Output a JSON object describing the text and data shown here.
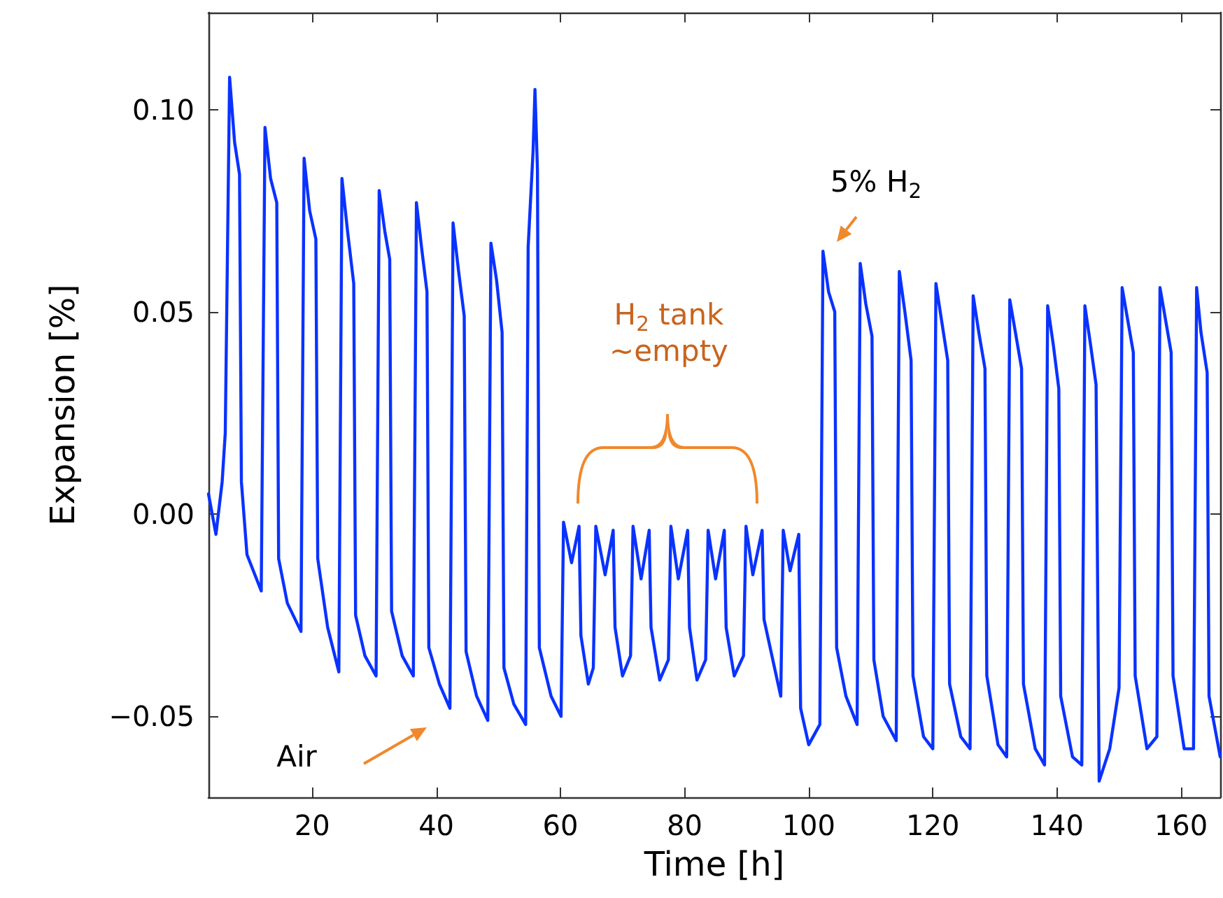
{
  "chart_data": {
    "type": "line",
    "xlabel": "Time [h]",
    "ylabel": "Expansion [%]",
    "xlim": [
      3.3,
      166.3
    ],
    "xticks": [
      20,
      40,
      60,
      80,
      100,
      120,
      140,
      160
    ],
    "ylim": [
      -0.07,
      0.124
    ],
    "yticks": [
      {
        "value": -0.05,
        "label": "−0.05"
      },
      {
        "value": 0,
        "label": "0.00"
      },
      {
        "value": 0.05,
        "label": "0.05"
      },
      {
        "value": 0.1,
        "label": "0.10"
      }
    ],
    "grid": false,
    "marker": "none",
    "line_style": "solid",
    "annotations": [
      "Air",
      "5% H$_{2}$",
      "H$_{2}$ tank\n~empty"
    ],
    "series": [
      {
        "color": "#0a32ff",
        "x": [
          3.3,
          4.5,
          5.5,
          6.0,
          6.7,
          7.5,
          8.3,
          8.6,
          9.5,
          11.8,
          12.4,
          13.3,
          14.3,
          14.6,
          16,
          18.2,
          18.7,
          19.6,
          20.6,
          20.9,
          22.5,
          24.3,
          24.8,
          25.7,
          26.7,
          27.0,
          28.5,
          30.3,
          30.8,
          31.7,
          32.5,
          32.8,
          34.5,
          36.3,
          36.8,
          37.7,
          38.5,
          38.8,
          40.5,
          42.2,
          42.7,
          43.6,
          44.5,
          44.8,
          46.5,
          48.3,
          48.8,
          49.7,
          50.6,
          50.9,
          52.5,
          54.4,
          54.8,
          55.6,
          55.9,
          56.3,
          56.6,
          58.5,
          60.1,
          60.5,
          61.8,
          63.0,
          63.3,
          64.5,
          65.3,
          65.7,
          67.2,
          68.5,
          68.8,
          70,
          71.3,
          71.7,
          73,
          74.3,
          74.6,
          76,
          77.4,
          77.8,
          79,
          80.5,
          80.8,
          82,
          83.4,
          83.8,
          85,
          86.4,
          86.7,
          88,
          89.5,
          89.9,
          91,
          92.5,
          92.8,
          94.5,
          95.5,
          95.9,
          97,
          98.4,
          98.7,
          100,
          101.8,
          102.3,
          103.2,
          104.2,
          104.5,
          106,
          107.8,
          108.3,
          109.2,
          110.2,
          110.5,
          112,
          114.1,
          114.6,
          115.5,
          116.5,
          116.8,
          118.5,
          120,
          120.5,
          121.4,
          122.4,
          122.7,
          124.5,
          126,
          126.5,
          127.4,
          128.4,
          128.7,
          130.5,
          131.9,
          132.4,
          133.3,
          134.3,
          134.6,
          136.5,
          138,
          138.5,
          139.4,
          140.3,
          140.6,
          142.5,
          144,
          144.5,
          145.4,
          146.3,
          146.8,
          148.5,
          150,
          150.5,
          151.4,
          152.3,
          152.6,
          154.5,
          156.1,
          156.6,
          157.5,
          158.4,
          158.7,
          160.5,
          162,
          162.5,
          163.2,
          164.2,
          164.5,
          166.3
        ],
        "values": [
          0.005,
          -0.005,
          0.008,
          0.02,
          0.108,
          0.092,
          0.084,
          0.008,
          -0.01,
          -0.019,
          0.0956,
          0.083,
          0.077,
          -0.011,
          -0.022,
          -0.029,
          0.088,
          0.075,
          0.068,
          -0.011,
          -0.028,
          -0.039,
          0.083,
          0.07,
          0.057,
          -0.025,
          -0.035,
          -0.04,
          0.08,
          0.07,
          0.063,
          -0.024,
          -0.035,
          -0.04,
          0.077,
          0.065,
          0.055,
          -0.033,
          -0.042,
          -0.048,
          0.072,
          0.06,
          0.049,
          -0.034,
          -0.045,
          -0.051,
          0.067,
          0.058,
          0.045,
          -0.038,
          -0.047,
          -0.052,
          0.066,
          0.09,
          0.105,
          0.085,
          -0.033,
          -0.045,
          -0.05,
          -0.002,
          -0.012,
          -0.003,
          -0.03,
          -0.042,
          -0.038,
          -0.003,
          -0.015,
          -0.004,
          -0.028,
          -0.04,
          -0.035,
          -0.003,
          -0.016,
          -0.004,
          -0.028,
          -0.041,
          -0.036,
          -0.003,
          -0.016,
          -0.004,
          -0.028,
          -0.041,
          -0.036,
          -0.004,
          -0.016,
          -0.004,
          -0.028,
          -0.04,
          -0.035,
          -0.003,
          -0.015,
          -0.004,
          -0.026,
          -0.038,
          -0.045,
          -0.004,
          -0.014,
          -0.005,
          -0.048,
          -0.057,
          -0.052,
          0.065,
          0.055,
          0.05,
          -0.033,
          -0.045,
          -0.052,
          0.062,
          0.052,
          0.044,
          -0.036,
          -0.05,
          -0.056,
          0.06,
          0.05,
          0.038,
          -0.04,
          -0.055,
          -0.058,
          0.057,
          0.048,
          0.038,
          -0.042,
          -0.055,
          -0.058,
          0.054,
          0.045,
          0.036,
          -0.04,
          -0.057,
          -0.06,
          0.053,
          0.045,
          0.036,
          -0.042,
          -0.058,
          -0.062,
          0.0515,
          0.042,
          0.031,
          -0.045,
          -0.06,
          -0.062,
          0.0515,
          0.042,
          0.032,
          -0.066,
          -0.058,
          -0.043,
          0.056,
          0.048,
          0.04,
          -0.04,
          -0.058,
          -0.055,
          0.056,
          0.048,
          0.04,
          -0.04,
          -0.058,
          -0.058,
          0.056,
          0.045,
          0.035,
          -0.045,
          -0.06
        ]
      }
    ]
  }
}
